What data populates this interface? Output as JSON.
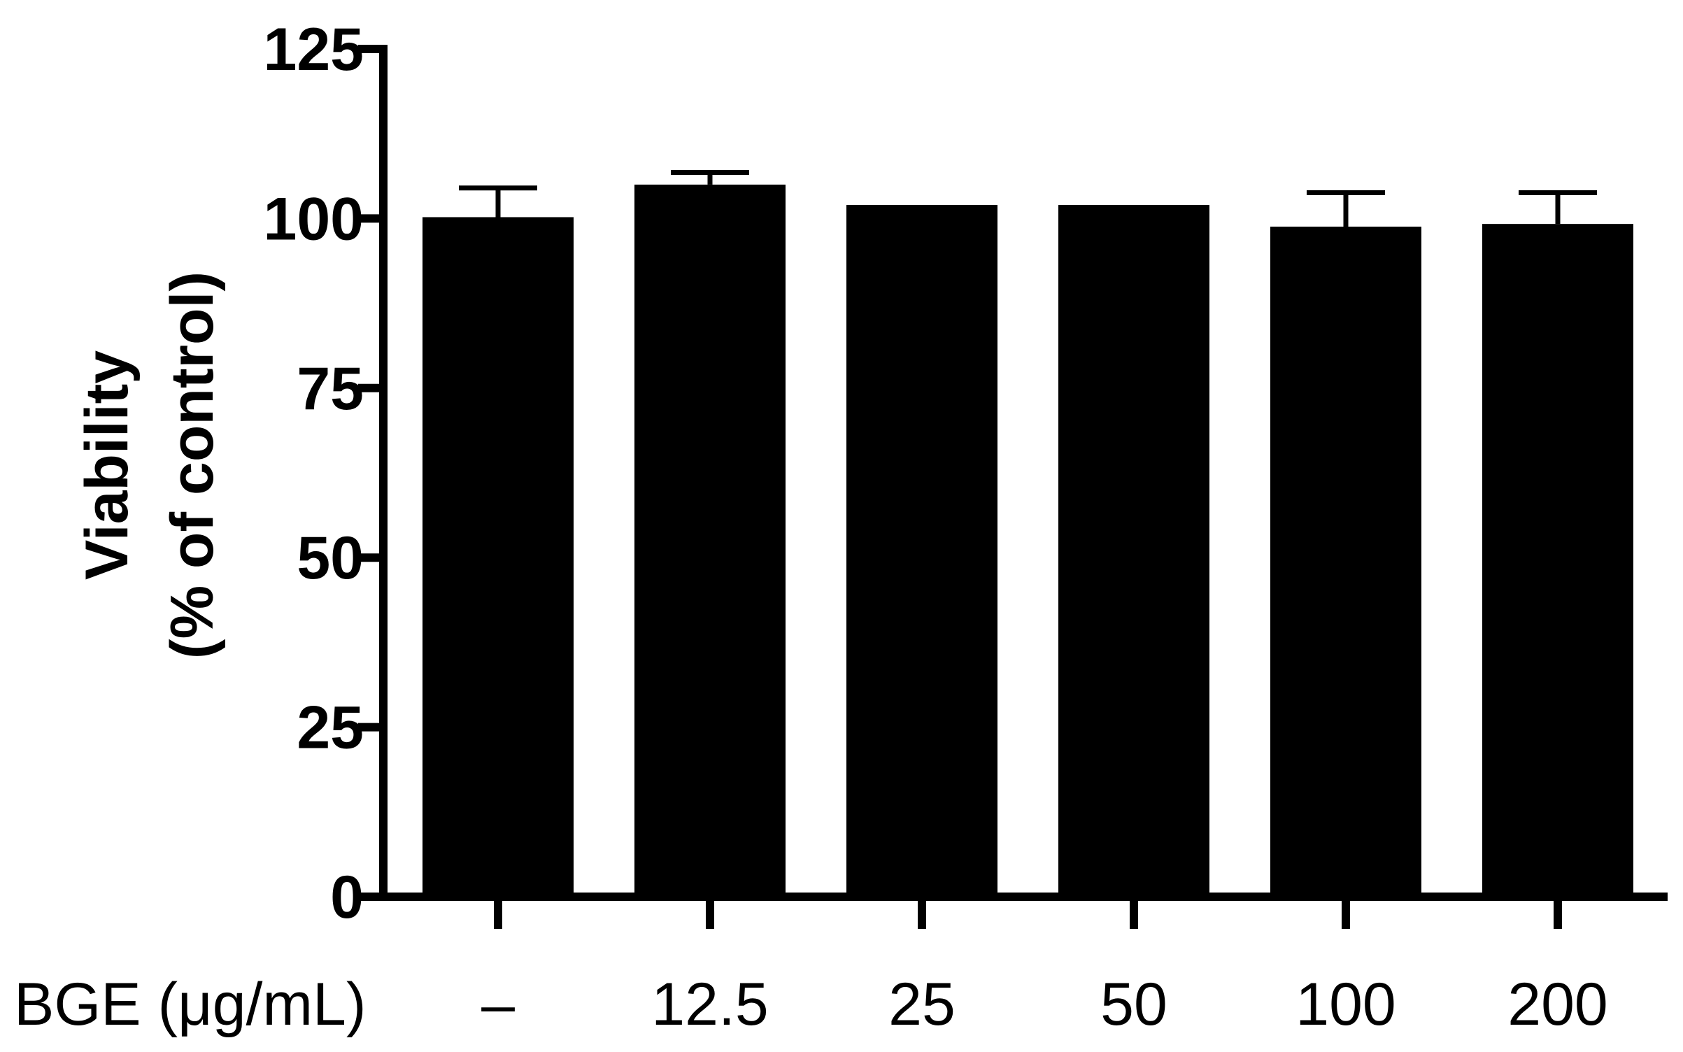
{
  "chart_data": {
    "type": "bar",
    "categories": [
      "–",
      "12.5",
      "25",
      "50",
      "100",
      "200"
    ],
    "xlabel": "BGE (μg/mL)",
    "ylabel_lines": [
      "Viability",
      "(% of control)"
    ],
    "ylim": [
      0,
      125
    ],
    "yticks": [
      0,
      25,
      50,
      75,
      100,
      125
    ],
    "series": [
      {
        "values": [
          100.2,
          105.0,
          102.0,
          102.0,
          98.8,
          99.2
        ],
        "errors": [
          4.3,
          1.8,
          0.0,
          0.0,
          5.0,
          4.6
        ]
      }
    ],
    "bar_color": "#000000",
    "grid": false,
    "legend": "none"
  }
}
